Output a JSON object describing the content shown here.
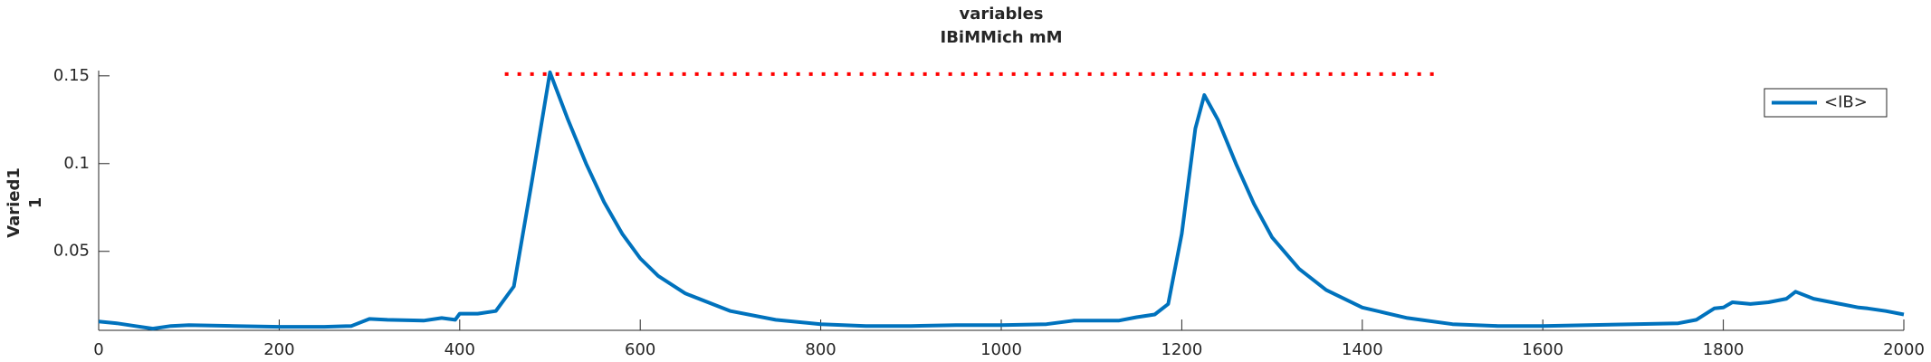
{
  "chart_data": {
    "type": "line",
    "title": [
      "variables",
      "IBiMMich mM"
    ],
    "ylabel": [
      "Varied1",
      "1"
    ],
    "x": [
      0,
      20,
      40,
      60,
      80,
      100,
      150,
      200,
      250,
      280,
      300,
      320,
      360,
      380,
      395,
      400,
      420,
      440,
      460,
      480,
      500,
      520,
      540,
      560,
      580,
      600,
      620,
      650,
      700,
      750,
      800,
      850,
      900,
      950,
      1000,
      1050,
      1080,
      1100,
      1130,
      1150,
      1170,
      1185,
      1200,
      1215,
      1225,
      1240,
      1260,
      1280,
      1300,
      1330,
      1360,
      1400,
      1450,
      1500,
      1550,
      1600,
      1650,
      1700,
      1750,
      1770,
      1790,
      1800,
      1810,
      1830,
      1850,
      1870,
      1880,
      1900,
      1920,
      1950,
      1960,
      1980,
      2000
    ],
    "series": [
      {
        "name": "<IB>",
        "color": "#0072bd",
        "values": [
          0.01,
          0.009,
          0.0075,
          0.006,
          0.0075,
          0.008,
          0.0075,
          0.007,
          0.007,
          0.0075,
          0.0115,
          0.011,
          0.0105,
          0.012,
          0.011,
          0.0145,
          0.0145,
          0.016,
          0.03,
          0.09,
          0.152,
          0.125,
          0.1,
          0.078,
          0.06,
          0.046,
          0.036,
          0.026,
          0.016,
          0.011,
          0.0085,
          0.0075,
          0.0075,
          0.008,
          0.008,
          0.0085,
          0.0105,
          0.0105,
          0.0105,
          0.0125,
          0.014,
          0.02,
          0.06,
          0.12,
          0.139,
          0.125,
          0.1,
          0.077,
          0.058,
          0.04,
          0.028,
          0.018,
          0.012,
          0.0085,
          0.0075,
          0.0075,
          0.008,
          0.0085,
          0.009,
          0.011,
          0.0175,
          0.018,
          0.021,
          0.02,
          0.021,
          0.023,
          0.027,
          0.023,
          0.021,
          0.018,
          0.0175,
          0.016,
          0.014
        ]
      }
    ],
    "reference_line": {
      "x": [
        450,
        1480
      ],
      "y": 0.151,
      "color": "#ff0000"
    },
    "xlim": [
      0,
      2000
    ],
    "xticks": [
      0,
      200,
      400,
      600,
      800,
      1000,
      1200,
      1400,
      1600,
      1800,
      2000
    ],
    "ylim": [
      0.005,
      0.153
    ],
    "yticks": [
      0.05,
      0.1,
      0.15
    ],
    "legend": "northeast"
  }
}
